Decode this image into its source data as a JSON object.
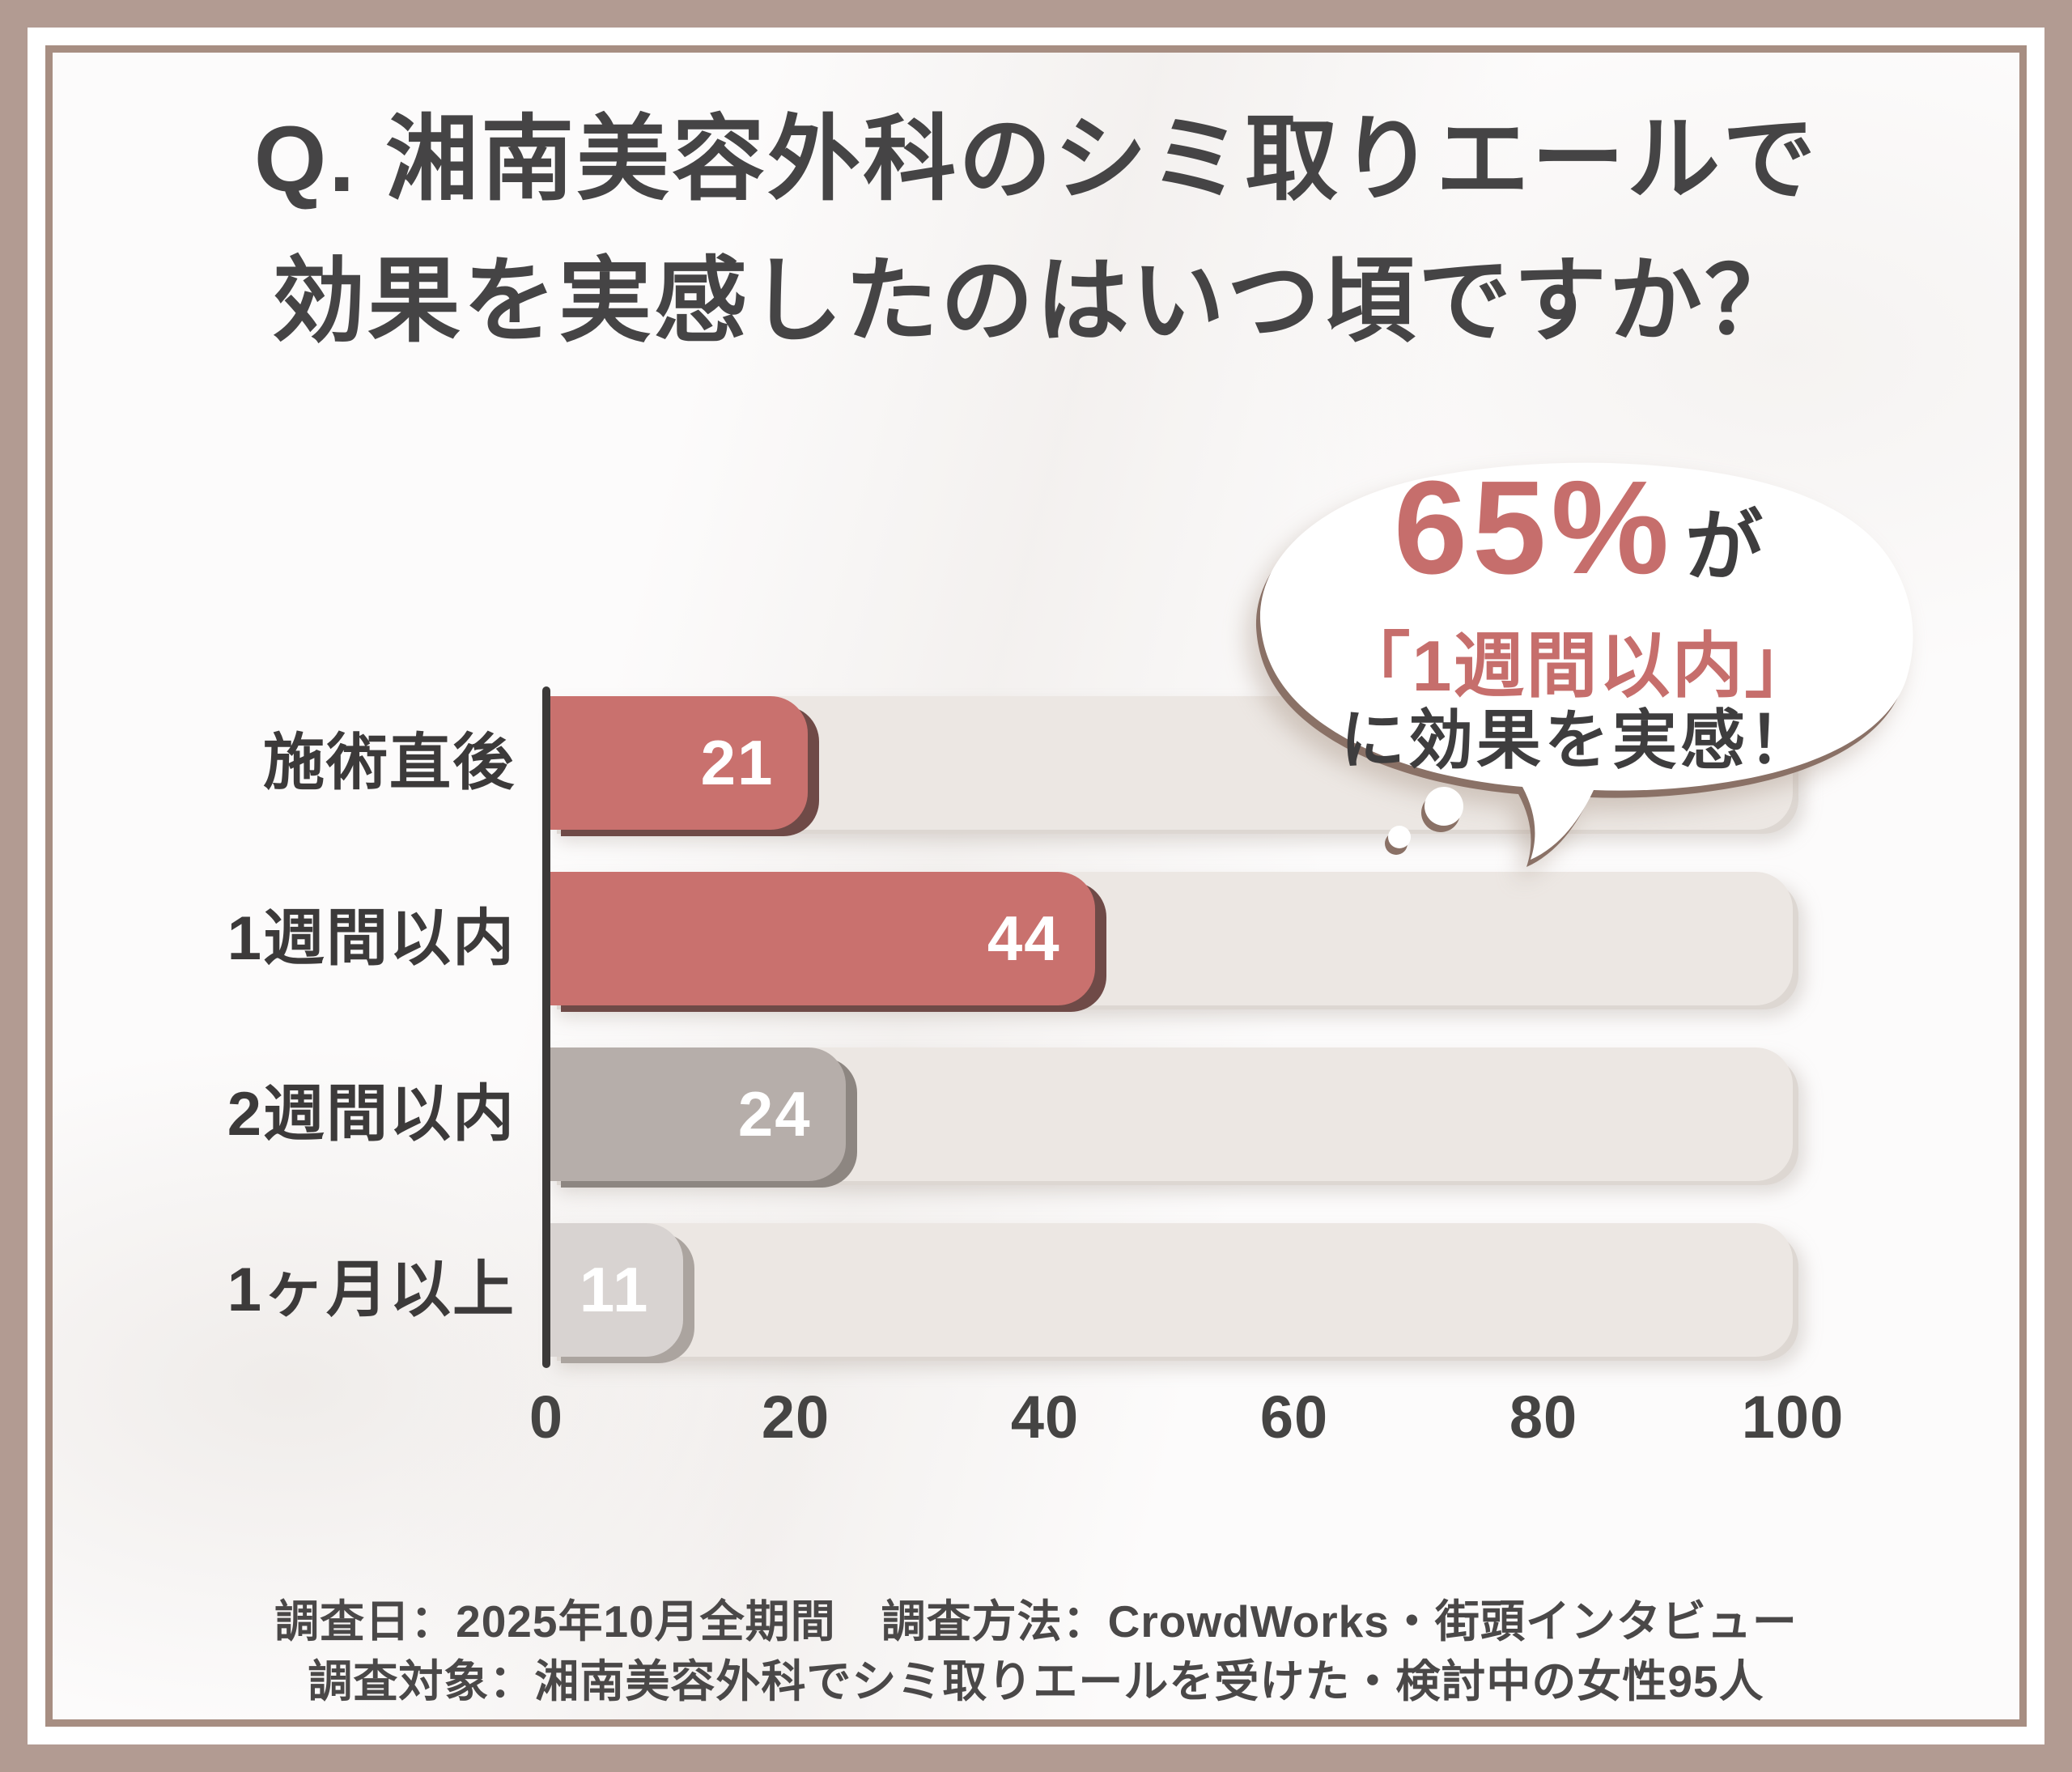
{
  "title": {
    "line1": "Q. 湘南美容外科のシミ取りエールで",
    "line2": "効果を実感したのはいつ頃ですか？"
  },
  "bubble": {
    "percent": "65%",
    "percent_suffix": "が",
    "highlight": "「1週間以内」",
    "conclusion": "に効果を実感！"
  },
  "chart_data": {
    "type": "bar",
    "orientation": "horizontal",
    "title": "Q. 湘南美容外科のシミ取りエールで効果を実感したのはいつ頃ですか？",
    "categories": [
      "施術直後",
      "1週間以内",
      "2週間以内",
      "1ヶ月以上"
    ],
    "values": [
      21,
      44,
      24,
      11
    ],
    "value_unit": "%",
    "xlim": [
      0,
      100
    ],
    "x_ticks": [
      "0",
      "20",
      "40",
      "60",
      "80",
      "100"
    ],
    "grid": false,
    "legend": "none",
    "bar_colors": [
      "#c9716e",
      "#c9716e",
      "#b6aeaa",
      "#d8d3d1"
    ],
    "bar_shadow_colors": [
      "#6f4a47",
      "#6f4a47",
      "#8d8681",
      "#aba49f"
    ],
    "track_color": "#ece7e3"
  },
  "footer": {
    "line1": "調査日：2025年10月全期間　調査方法：CrowdWorks・街頭インタビュー",
    "line2": "調査対象：湘南美容外科でシミ取りエールを受けた・検討中の女性95人"
  },
  "colors": {
    "frame": "#b29b92",
    "frame_inner_line": "#a78e82",
    "card_background": "#fcfbfb",
    "title_text": "#454445",
    "accent_pink": "#c9716e",
    "dark_text": "#3e3d3e",
    "axis_line": "#3b3938",
    "value_text": "#ffffff"
  }
}
